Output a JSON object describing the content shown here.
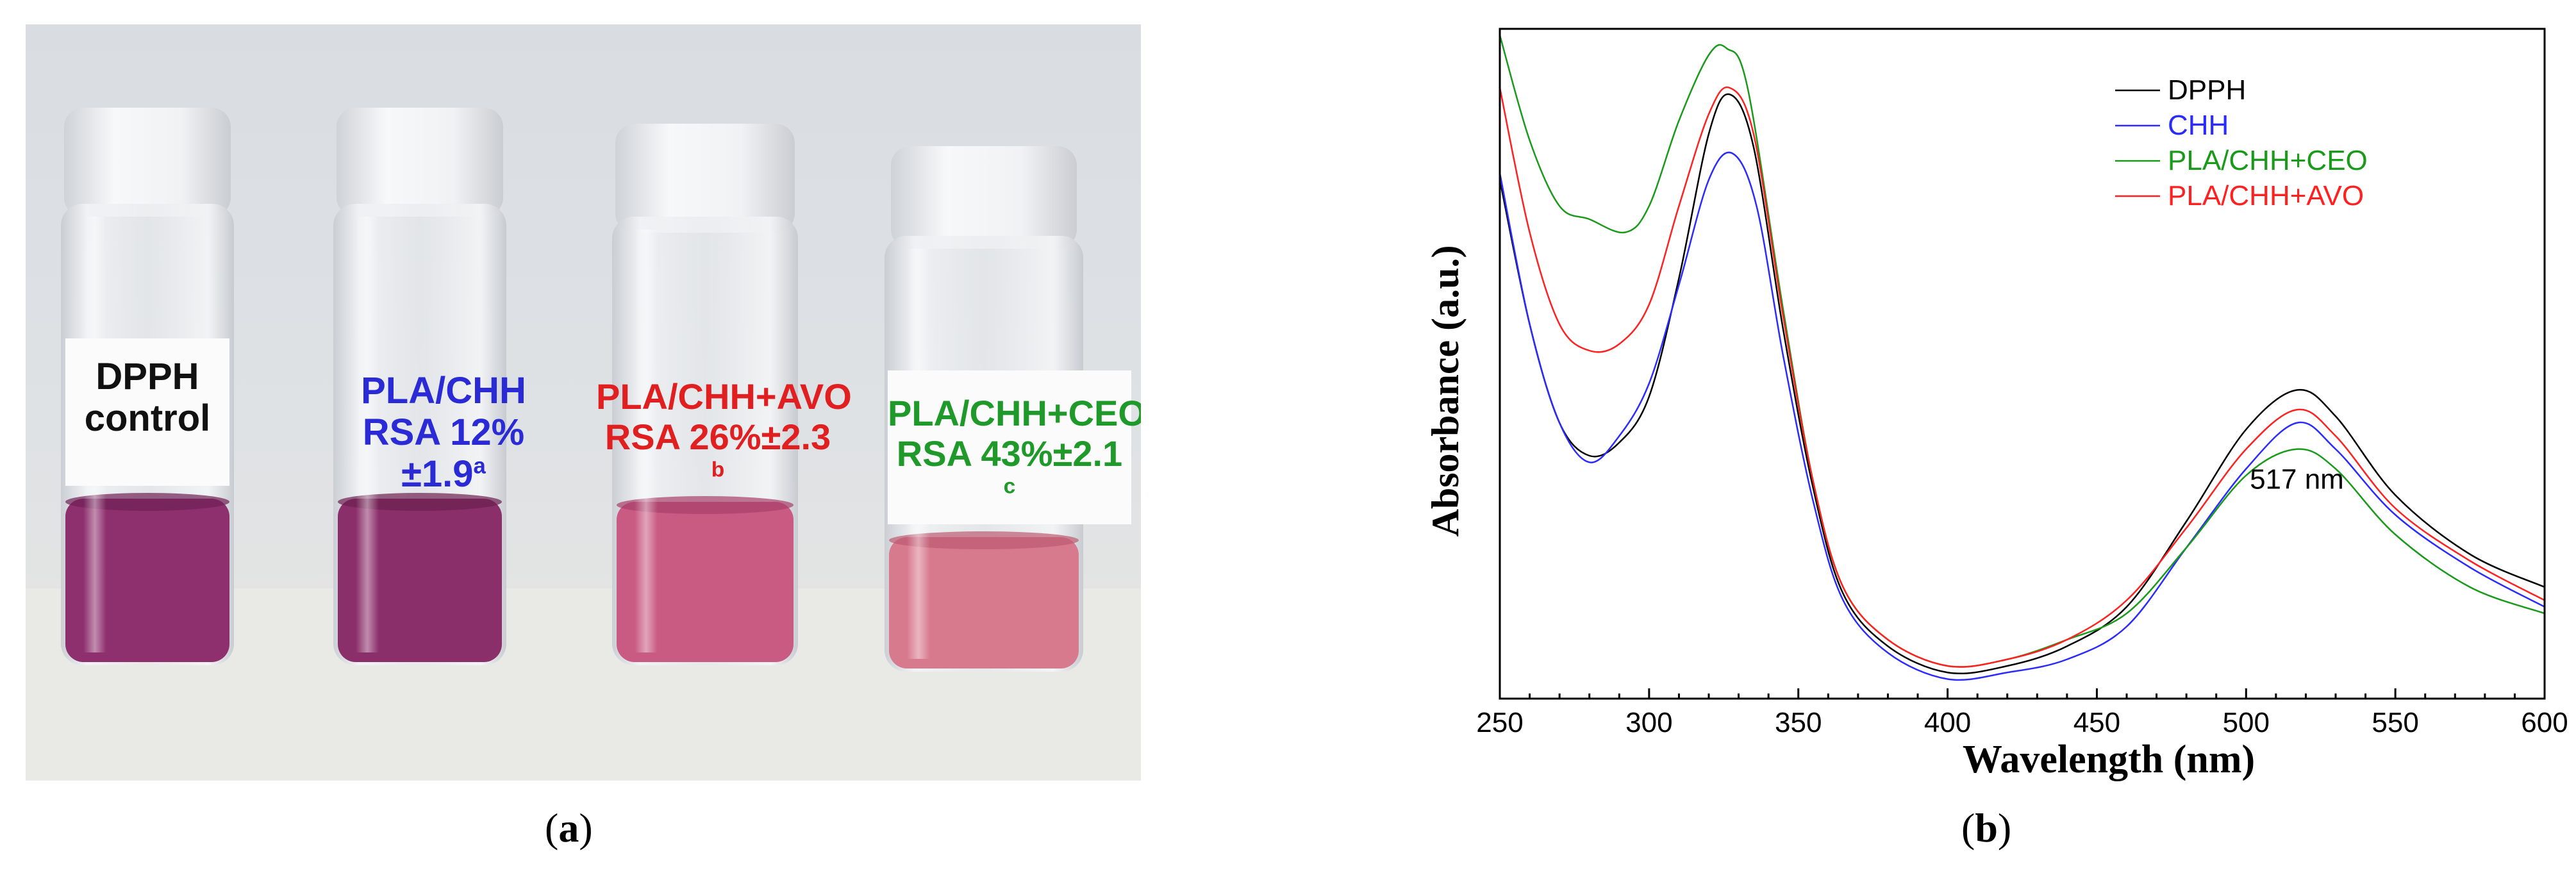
{
  "panel_a": {
    "caption_open": "(",
    "caption_letter": "a",
    "caption_close": ")",
    "labels": [
      {
        "line1": "DPPH",
        "line2": "control",
        "sup": "",
        "color": "#111111"
      },
      {
        "line1": "PLA/CHH",
        "line2": "RSA 12%±1.9",
        "sup": "a",
        "color": "#2b2bd6"
      },
      {
        "line1": "PLA/CHH+AVO",
        "line2": "RSA 26%±2.3",
        "sup": "b",
        "color": "#e02020"
      },
      {
        "line1": "PLA/CHH+CEO",
        "line2": "RSA 43%±2.1",
        "sup": "c",
        "color": "#1f9a2a"
      }
    ],
    "liquid_colors": [
      "#8e2f6e",
      "#8a2f6a",
      "#c95a82",
      "#d87a8e"
    ]
  },
  "panel_b": {
    "caption_open": "(",
    "caption_letter": "b",
    "caption_close": ")"
  },
  "chart_data": {
    "type": "line",
    "xlabel": "Wavelength (nm)",
    "ylabel": "Absorbance (a.u.)",
    "xlim": [
      250,
      600
    ],
    "ylim": [
      0,
      1
    ],
    "xticks": [
      250,
      300,
      350,
      400,
      450,
      500,
      550,
      600
    ],
    "y_tick_labels": false,
    "legend_position": "top-right",
    "annotation": {
      "text": "517 nm",
      "x": 517,
      "y": 0.31
    },
    "series": [
      {
        "name": "DPPH",
        "color": "#000000",
        "points": [
          [
            250,
            0.78
          ],
          [
            260,
            0.56
          ],
          [
            270,
            0.41
          ],
          [
            280,
            0.36
          ],
          [
            290,
            0.38
          ],
          [
            300,
            0.45
          ],
          [
            310,
            0.63
          ],
          [
            320,
            0.85
          ],
          [
            327,
            0.91
          ],
          [
            335,
            0.83
          ],
          [
            345,
            0.55
          ],
          [
            355,
            0.31
          ],
          [
            365,
            0.15
          ],
          [
            380,
            0.07
          ],
          [
            400,
            0.03
          ],
          [
            420,
            0.04
          ],
          [
            440,
            0.07
          ],
          [
            460,
            0.13
          ],
          [
            480,
            0.26
          ],
          [
            500,
            0.4
          ],
          [
            517,
            0.46
          ],
          [
            530,
            0.42
          ],
          [
            550,
            0.3
          ],
          [
            575,
            0.21
          ],
          [
            600,
            0.16
          ]
        ]
      },
      {
        "name": "CHH",
        "color": "#2b2bff",
        "points": [
          [
            250,
            0.79
          ],
          [
            260,
            0.56
          ],
          [
            270,
            0.41
          ],
          [
            280,
            0.35
          ],
          [
            290,
            0.39
          ],
          [
            300,
            0.47
          ],
          [
            310,
            0.62
          ],
          [
            320,
            0.78
          ],
          [
            328,
            0.82
          ],
          [
            336,
            0.74
          ],
          [
            345,
            0.51
          ],
          [
            355,
            0.29
          ],
          [
            365,
            0.14
          ],
          [
            380,
            0.06
          ],
          [
            400,
            0.02
          ],
          [
            420,
            0.03
          ],
          [
            440,
            0.05
          ],
          [
            460,
            0.1
          ],
          [
            480,
            0.22
          ],
          [
            500,
            0.34
          ],
          [
            517,
            0.41
          ],
          [
            530,
            0.37
          ],
          [
            550,
            0.27
          ],
          [
            575,
            0.19
          ],
          [
            600,
            0.13
          ]
        ]
      },
      {
        "name": "PLA/CHH+CEO",
        "color": "#1a9a1a",
        "points": [
          [
            250,
            1.0
          ],
          [
            260,
            0.84
          ],
          [
            270,
            0.74
          ],
          [
            280,
            0.72
          ],
          [
            292,
            0.7
          ],
          [
            300,
            0.74
          ],
          [
            310,
            0.87
          ],
          [
            320,
            0.97
          ],
          [
            326,
            0.98
          ],
          [
            333,
            0.92
          ],
          [
            345,
            0.58
          ],
          [
            355,
            0.32
          ],
          [
            365,
            0.16
          ],
          [
            380,
            0.08
          ],
          [
            400,
            0.04
          ],
          [
            420,
            0.05
          ],
          [
            440,
            0.08
          ],
          [
            460,
            0.12
          ],
          [
            480,
            0.22
          ],
          [
            500,
            0.33
          ],
          [
            517,
            0.37
          ],
          [
            530,
            0.34
          ],
          [
            550,
            0.24
          ],
          [
            575,
            0.16
          ],
          [
            600,
            0.12
          ]
        ]
      },
      {
        "name": "PLA/CHH+AVO",
        "color": "#ff2020",
        "points": [
          [
            250,
            0.92
          ],
          [
            260,
            0.7
          ],
          [
            270,
            0.56
          ],
          [
            280,
            0.52
          ],
          [
            290,
            0.53
          ],
          [
            300,
            0.59
          ],
          [
            310,
            0.74
          ],
          [
            320,
            0.88
          ],
          [
            327,
            0.92
          ],
          [
            335,
            0.85
          ],
          [
            345,
            0.57
          ],
          [
            355,
            0.32
          ],
          [
            365,
            0.16
          ],
          [
            380,
            0.08
          ],
          [
            400,
            0.04
          ],
          [
            420,
            0.05
          ],
          [
            440,
            0.08
          ],
          [
            460,
            0.14
          ],
          [
            480,
            0.25
          ],
          [
            500,
            0.37
          ],
          [
            517,
            0.43
          ],
          [
            530,
            0.39
          ],
          [
            550,
            0.28
          ],
          [
            575,
            0.2
          ],
          [
            600,
            0.14
          ]
        ]
      }
    ]
  }
}
